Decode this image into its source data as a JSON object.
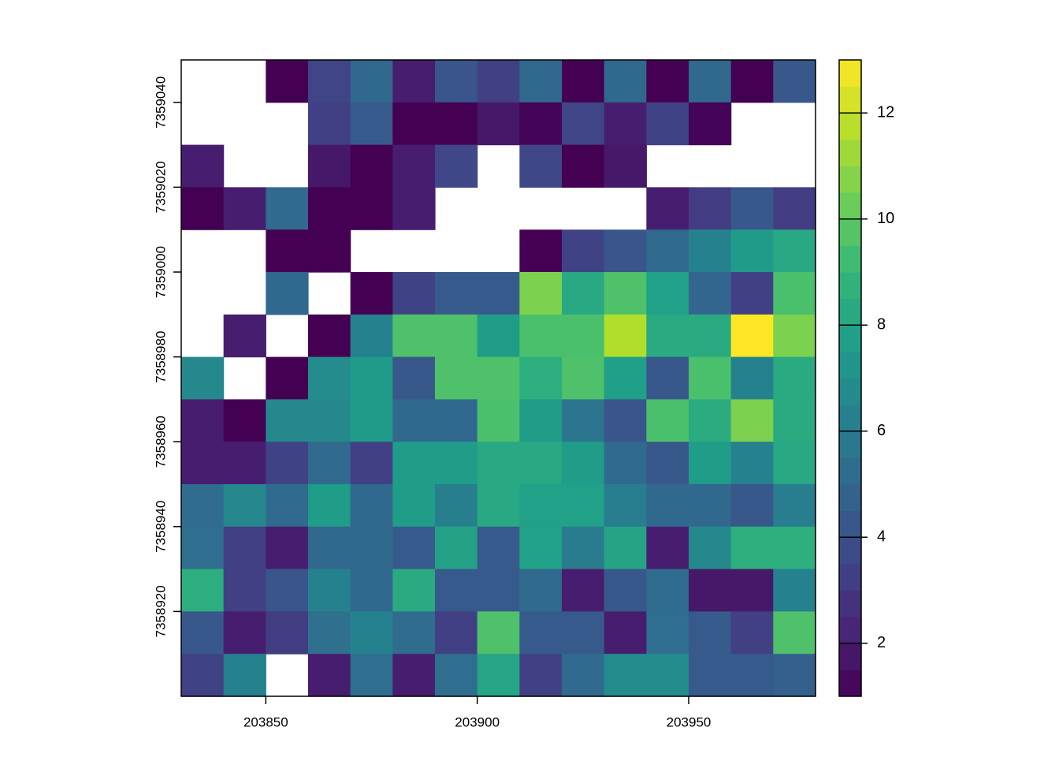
{
  "chart_data": {
    "type": "heatmap",
    "xlim": [
      203830,
      203980
    ],
    "ylim": [
      7358900,
      7359050
    ],
    "xticks": [
      203850,
      203900,
      203950
    ],
    "yticks": [
      7358920,
      7358940,
      7358960,
      7358980,
      7359000,
      7359020,
      7359040
    ],
    "zlim": [
      1,
      13
    ],
    "zticks": [
      2,
      4,
      6,
      8,
      10,
      12
    ],
    "colormap": [
      "#440154",
      "#482878",
      "#3e4989",
      "#31688e",
      "#26828e",
      "#1f9e89",
      "#35b779",
      "#6ece58",
      "#b5de2b",
      "#fde725"
    ],
    "values": [
      [
        null,
        null,
        1,
        3.5,
        5,
        2,
        4.2,
        3.3,
        5,
        1,
        5,
        1,
        5,
        1,
        4.3
      ],
      [
        null,
        null,
        null,
        3.3,
        4.4,
        1,
        1,
        1.8,
        1.1,
        3.5,
        2,
        3.4,
        1.1,
        null,
        null
      ],
      [
        2,
        null,
        null,
        1.8,
        1,
        2,
        3.6,
        null,
        3.6,
        1,
        1.8,
        null,
        null,
        null,
        null
      ],
      [
        1,
        2,
        5.1,
        1,
        1,
        2,
        null,
        null,
        null,
        null,
        null,
        2,
        3.2,
        4.3,
        3.2
      ],
      [
        null,
        null,
        1,
        1,
        null,
        null,
        null,
        null,
        1,
        3.4,
        4.2,
        5.1,
        6.3,
        7.5,
        8.2
      ],
      [
        null,
        null,
        5,
        null,
        1,
        3.4,
        4.4,
        4.4,
        10.6,
        8.2,
        9.6,
        7.8,
        4.9,
        3.3,
        9.5
      ],
      [
        null,
        2,
        null,
        1,
        6.3,
        9.6,
        9.6,
        7.6,
        9.5,
        9.5,
        11.6,
        8.3,
        8.3,
        13,
        10.6
      ],
      [
        6.6,
        null,
        1,
        6.8,
        7.5,
        4.3,
        9.6,
        9.6,
        8.5,
        9.6,
        7.7,
        4.3,
        9.5,
        6.3,
        8.3
      ],
      [
        2,
        1,
        6.6,
        6.6,
        7.5,
        5,
        5,
        9.5,
        7.6,
        5.7,
        4.2,
        9.5,
        8.4,
        10.6,
        8.3
      ],
      [
        2,
        2,
        3.4,
        5.1,
        3.3,
        7.6,
        7.6,
        8.2,
        8.2,
        7.6,
        5.1,
        4.3,
        7.6,
        6.3,
        8.2
      ],
      [
        5.2,
        6.6,
        5.1,
        7.6,
        5,
        7.6,
        6.2,
        8.2,
        7.8,
        7.8,
        6.1,
        5,
        5,
        4.3,
        6.1
      ],
      [
        5.3,
        3.3,
        2,
        5,
        5,
        4.4,
        7.9,
        4.4,
        7.8,
        6,
        8,
        2,
        6.6,
        8.6,
        8.6
      ],
      [
        8.5,
        3.3,
        4.2,
        6.3,
        5,
        8.3,
        4.4,
        4.4,
        5.1,
        2,
        4.3,
        5.2,
        1.8,
        1.8,
        6.3
      ],
      [
        4.3,
        2,
        3.2,
        5.4,
        6.3,
        5.2,
        3.3,
        9.6,
        4.4,
        4.4,
        2,
        5.3,
        4.4,
        3.3,
        9.6
      ],
      [
        3.4,
        6.3,
        null,
        2,
        5.3,
        2,
        5.3,
        8.1,
        3.3,
        5.1,
        6.8,
        6.8,
        4.4,
        4.4,
        4.6
      ]
    ]
  }
}
